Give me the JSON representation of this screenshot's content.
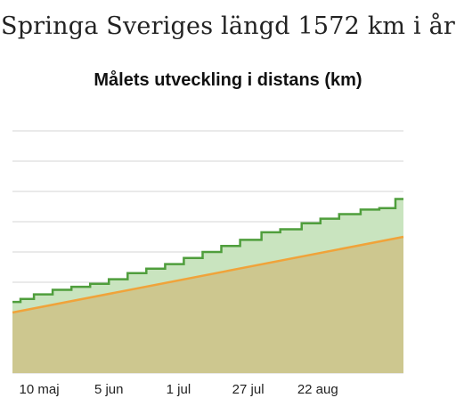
{
  "page": {
    "title": "Springa Sveriges längd 1572 km i år"
  },
  "chart_data": {
    "type": "area",
    "title": "Målets utveckling i distans (km)",
    "xlabel": "",
    "ylabel": "",
    "grid": true,
    "x_ticks": [
      "10 maj",
      "5 jun",
      "1 jul",
      "27 jul",
      "22 aug"
    ],
    "x_tick_days": [
      10,
      36,
      62,
      88,
      114
    ],
    "x_range_days": [
      0,
      146
    ],
    "y_range": [
      0,
      8
    ],
    "y_ticks_unlabeled": [
      0,
      1,
      2,
      3,
      4,
      5,
      6,
      7,
      8
    ],
    "colors": {
      "actual_line": "#4f9e3c",
      "actual_fill": "#c9e4bf",
      "goal_line": "#f0a33a",
      "goal_fill": "#cdc78f",
      "grid": "#d6d6d6"
    },
    "series": [
      {
        "key": "goal",
        "points": [
          [
            0,
            2.0
          ],
          [
            146,
            4.5
          ]
        ]
      },
      {
        "key": "actual",
        "step": true,
        "points": [
          [
            0,
            2.35
          ],
          [
            3,
            2.45
          ],
          [
            8,
            2.6
          ],
          [
            15,
            2.75
          ],
          [
            22,
            2.85
          ],
          [
            29,
            2.95
          ],
          [
            36,
            3.1
          ],
          [
            43,
            3.3
          ],
          [
            50,
            3.45
          ],
          [
            57,
            3.6
          ],
          [
            64,
            3.8
          ],
          [
            71,
            4.0
          ],
          [
            78,
            4.2
          ],
          [
            85,
            4.4
          ],
          [
            93,
            4.65
          ],
          [
            100,
            4.75
          ],
          [
            108,
            4.95
          ],
          [
            115,
            5.1
          ],
          [
            122,
            5.25
          ],
          [
            130,
            5.4
          ],
          [
            137,
            5.45
          ],
          [
            143,
            5.75
          ],
          [
            146,
            5.75
          ]
        ]
      }
    ]
  }
}
